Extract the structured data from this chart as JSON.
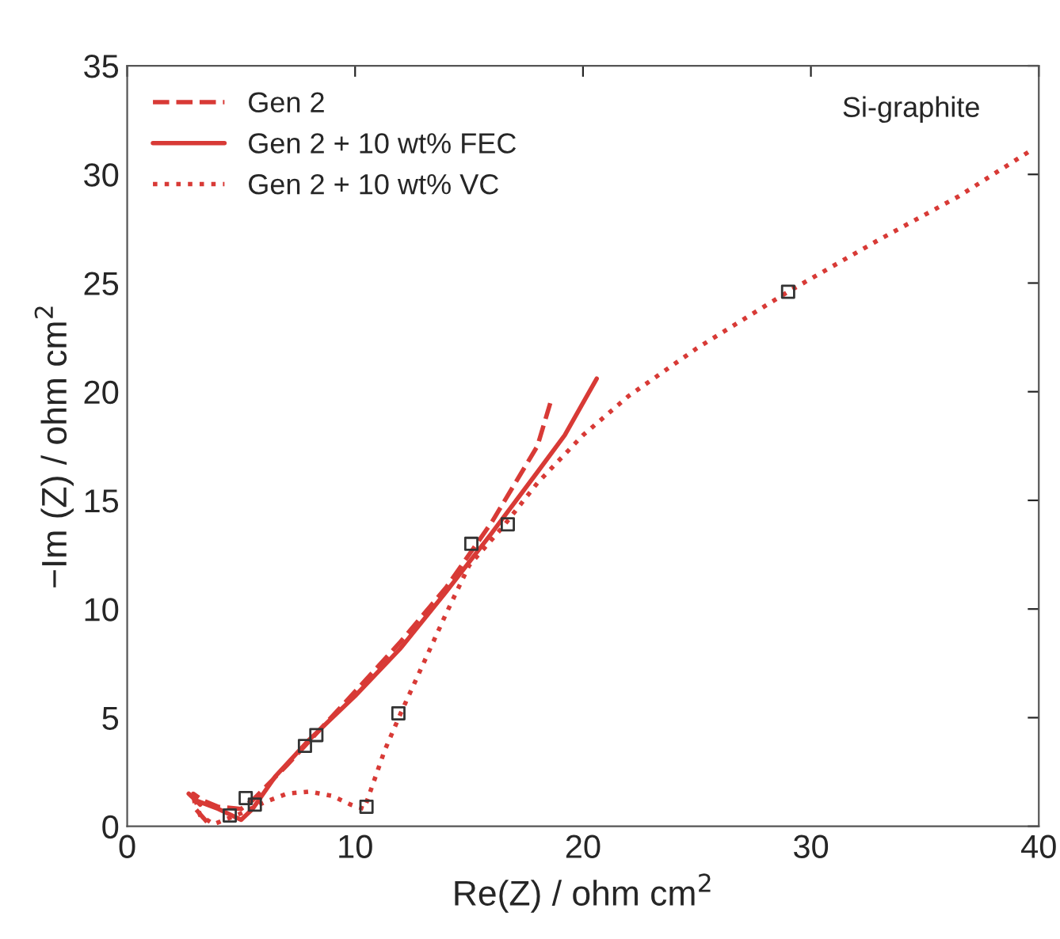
{
  "chart_data": {
    "type": "line",
    "xlabel": "Re(Z) / ohm cm$^{2}$",
    "ylabel": "−Im (Z) / ohm cm$^{2}$",
    "xlim": [
      0,
      40
    ],
    "xticks": [
      0,
      10,
      20,
      30,
      40
    ],
    "ylim": [
      0,
      35
    ],
    "yticks": [
      0,
      5,
      10,
      15,
      20,
      25,
      30,
      35
    ],
    "grid": false,
    "legend": "top left",
    "annotations": [
      "Si-graphite"
    ],
    "series": [
      {
        "name": "Gen 2",
        "color": "#d83a36",
        "line_style": "dashed",
        "x": [
          3.5,
          3.0,
          2.9,
          3.3,
          4.0,
          5.0,
          5.5,
          7.0,
          8.5,
          10.0,
          12.0,
          14.0,
          16.0,
          18.0,
          18.6
        ],
        "values": [
          0.2,
          0.8,
          1.5,
          1.2,
          0.9,
          0.8,
          1.2,
          2.8,
          4.5,
          6.2,
          8.5,
          11.0,
          14.0,
          17.5,
          19.6
        ]
      },
      {
        "name": "Gen 2 + 10 wt% FEC",
        "color": "#d83a36",
        "line_style": "solid",
        "x": [
          3.2,
          2.7,
          3.0,
          4.0,
          5.0,
          5.5,
          6.5,
          8.0,
          10.0,
          12.0,
          14.0,
          16.0,
          18.0,
          19.2,
          20.6
        ],
        "values": [
          1.0,
          1.5,
          1.2,
          0.8,
          0.3,
          0.8,
          2.3,
          4.0,
          6.0,
          8.2,
          10.8,
          13.5,
          16.3,
          18.0,
          20.6
        ]
      },
      {
        "name": "Gen 2 + 10 wt% VC",
        "color": "#d83a36",
        "line_style": "dotted",
        "x": [
          3.0,
          3.2,
          3.8,
          5.0,
          6.0,
          7.0,
          8.0,
          9.0,
          9.8,
          10.4,
          10.8,
          11.3,
          12.0,
          13.0,
          14.0,
          15.0,
          16.5,
          18.0,
          20.0,
          22.0,
          25.0,
          29.0,
          33.0,
          36.5,
          39.8
        ],
        "values": [
          1.2,
          0.5,
          0.1,
          0.6,
          1.1,
          1.5,
          1.6,
          1.4,
          1.0,
          0.8,
          2.0,
          3.5,
          5.2,
          7.5,
          9.8,
          12.0,
          13.8,
          15.8,
          18.0,
          19.8,
          22.0,
          24.6,
          27.0,
          29.0,
          31.2
        ]
      },
      {
        "type": "scatter",
        "color": "#333333",
        "marker": "square",
        "x": [
          4.5,
          5.2,
          5.6,
          7.8,
          8.3,
          10.5,
          11.9,
          15.1,
          16.7,
          29.0
        ],
        "values": [
          0.5,
          1.3,
          1.0,
          3.7,
          4.2,
          0.9,
          5.2,
          13.0,
          13.9,
          24.6
        ]
      }
    ]
  }
}
